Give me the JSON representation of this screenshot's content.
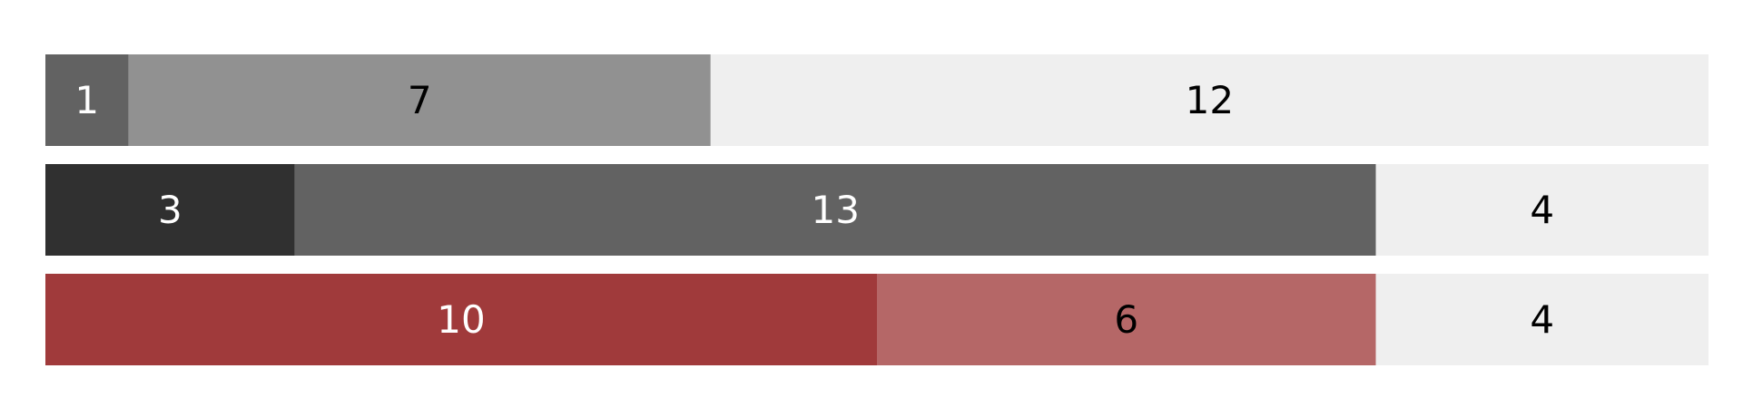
{
  "chart_data": {
    "type": "bar",
    "orientation": "horizontal",
    "stacked": true,
    "title": "",
    "xlabel": "",
    "ylabel": "",
    "xlim": [
      0,
      20
    ],
    "grid": false,
    "legend": "none",
    "rows": [
      {
        "segments": [
          {
            "value": 1,
            "label": "1",
            "color": "#626262",
            "text_color": "#ffffff"
          },
          {
            "value": 7,
            "label": "7",
            "color": "#919191",
            "text_color": "#000000"
          },
          {
            "value": 12,
            "label": "12",
            "color": "#efefef",
            "text_color": "#000000"
          }
        ]
      },
      {
        "segments": [
          {
            "value": 3,
            "label": "3",
            "color": "#303030",
            "text_color": "#ffffff"
          },
          {
            "value": 13,
            "label": "13",
            "color": "#626262",
            "text_color": "#ffffff"
          },
          {
            "value": 4,
            "label": "4",
            "color": "#efefef",
            "text_color": "#000000"
          }
        ]
      },
      {
        "segments": [
          {
            "value": 10,
            "label": "10",
            "color": "#a03a3b",
            "text_color": "#ffffff"
          },
          {
            "value": 6,
            "label": "6",
            "color": "#b56767",
            "text_color": "#000000"
          },
          {
            "value": 4,
            "label": "4",
            "color": "#efefef",
            "text_color": "#000000"
          }
        ]
      }
    ]
  }
}
